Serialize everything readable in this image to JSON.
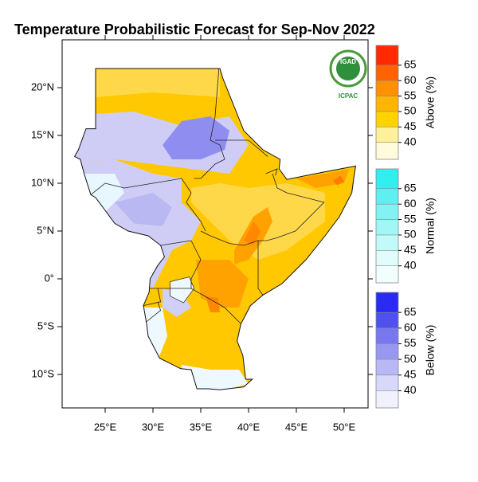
{
  "title": "Temperature Probabilistic Forecast for Sep-Nov 2022",
  "logo": {
    "top": "IGAD",
    "bottom": "ICPAC"
  },
  "map": {
    "lat_ticks": [
      {
        "value": 20,
        "label": "20°N"
      },
      {
        "value": 15,
        "label": "15°N"
      },
      {
        "value": 10,
        "label": "10°N"
      },
      {
        "value": 5,
        "label": "5°N"
      },
      {
        "value": 0,
        "label": "0°"
      },
      {
        "value": -5,
        "label": "5°S"
      },
      {
        "value": -10,
        "label": "10°S"
      }
    ],
    "lon_ticks": [
      {
        "value": 25,
        "label": "25°E"
      },
      {
        "value": 30,
        "label": "30°E"
      },
      {
        "value": 35,
        "label": "35°E"
      },
      {
        "value": 40,
        "label": "40°E"
      },
      {
        "value": 45,
        "label": "45°E"
      },
      {
        "value": 50,
        "label": "50°E"
      }
    ]
  },
  "colorbars": [
    {
      "label": "Above (%)",
      "levels": [
        40,
        45,
        50,
        55,
        60,
        65
      ],
      "colors": [
        "#fffbdc",
        "#fff09a",
        "#ffd200",
        "#ffb400",
        "#ff9000",
        "#ff6200",
        "#ff2a00"
      ]
    },
    {
      "label": "Normal (%)",
      "levels": [
        40,
        45,
        50,
        55,
        60,
        65
      ],
      "colors": [
        "#f2fefe",
        "#e0fcfc",
        "#c2f9f9",
        "#a2f6f6",
        "#82f2f2",
        "#5ef0f0",
        "#33eeee"
      ]
    },
    {
      "label": "Below (%)",
      "levels": [
        40,
        45,
        50,
        55,
        60,
        65
      ],
      "colors": [
        "#f0f0ff",
        "#d8d8fa",
        "#b8b8f5",
        "#9898f0",
        "#7878ee",
        "#5050f0",
        "#2a2af5"
      ]
    }
  ]
}
